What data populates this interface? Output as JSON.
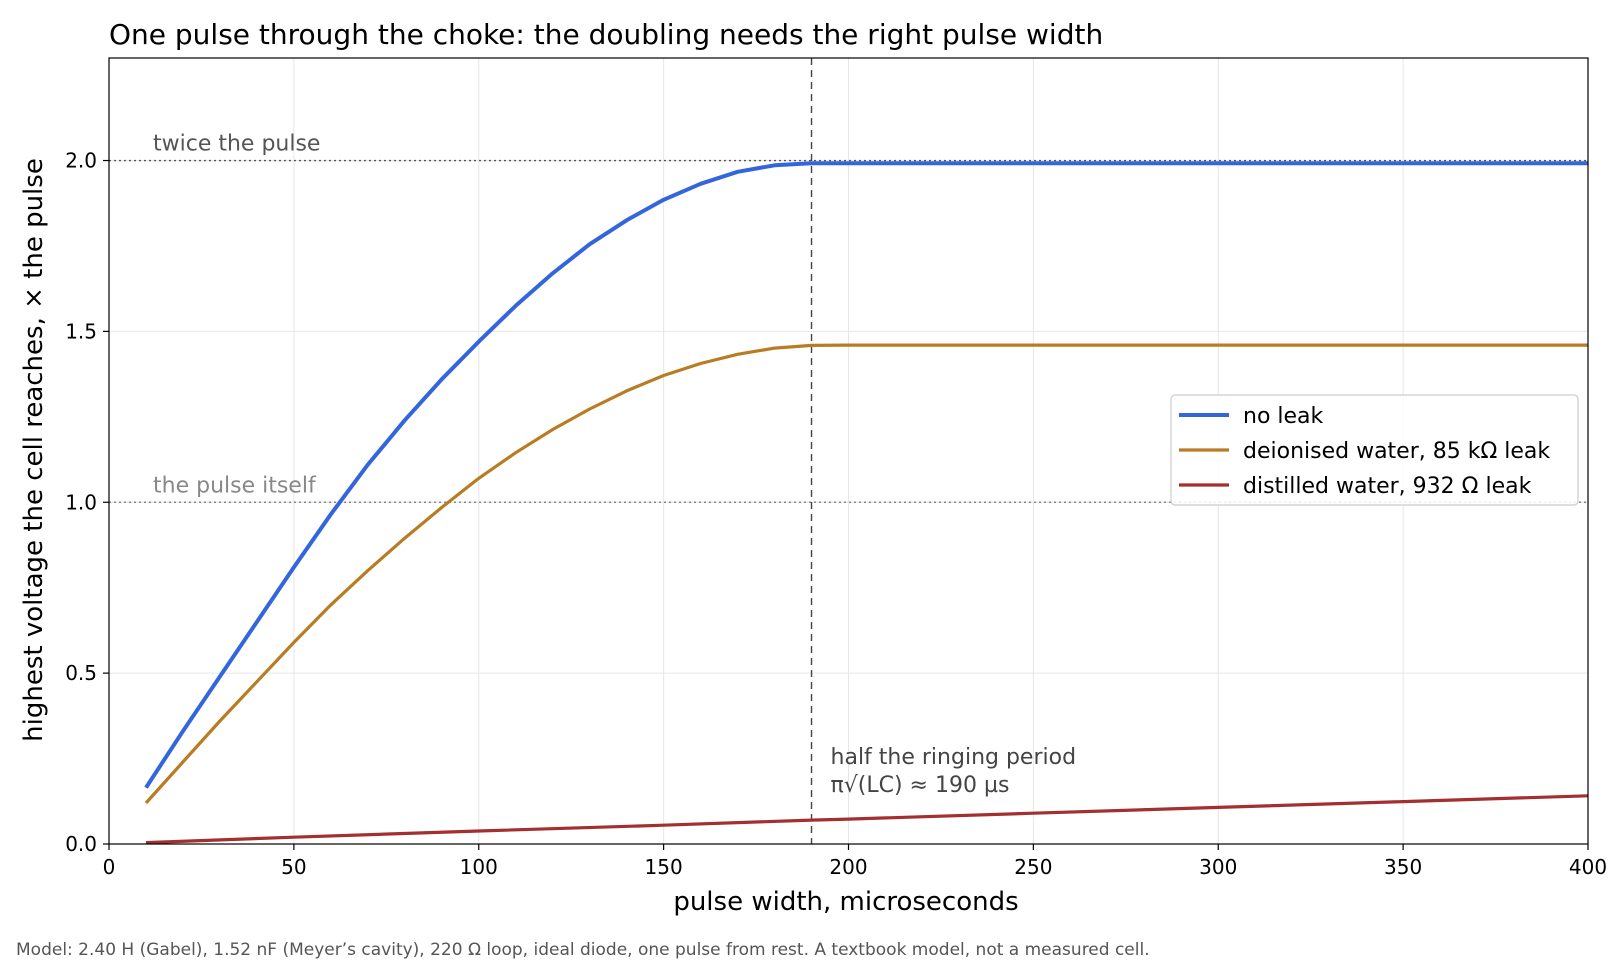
{
  "chart_data": {
    "type": "line",
    "title": "One pulse through the choke: the doubling needs the right pulse width",
    "xlabel": "pulse width, microseconds",
    "ylabel": "highest voltage the cell reaches, × the pulse",
    "xlim": [
      0,
      400
    ],
    "ylim": [
      0,
      2.3
    ],
    "xticks": [
      0,
      50,
      100,
      150,
      200,
      250,
      300,
      350,
      400
    ],
    "yticks": [
      0.0,
      0.5,
      1.0,
      1.5,
      2.0
    ],
    "xtick_labels": [
      "0",
      "50",
      "100",
      "150",
      "200",
      "250",
      "300",
      "350",
      "400"
    ],
    "ytick_labels": [
      "0.0",
      "0.5",
      "1.0",
      "1.5",
      "2.0"
    ],
    "grid": true,
    "legend_position": "right",
    "series": [
      {
        "name": "no leak",
        "color": "#3366dd",
        "x": [
          10,
          20,
          30,
          40,
          50,
          60,
          70,
          80,
          90,
          100,
          110,
          120,
          130,
          140,
          150,
          160,
          170,
          180,
          190,
          200,
          250,
          300,
          350,
          400
        ],
        "values": [
          0.165,
          0.33,
          0.49,
          0.65,
          0.81,
          0.965,
          1.11,
          1.24,
          1.36,
          1.47,
          1.575,
          1.67,
          1.755,
          1.825,
          1.885,
          1.932,
          1.967,
          1.986,
          1.992,
          1.992,
          1.992,
          1.992,
          1.992,
          1.992
        ]
      },
      {
        "name": "deionised water, 85 kΩ leak",
        "color": "#b87c23",
        "x": [
          10,
          20,
          30,
          40,
          50,
          60,
          70,
          80,
          90,
          100,
          110,
          120,
          130,
          140,
          150,
          160,
          170,
          180,
          190,
          200,
          250,
          300,
          350,
          400
        ],
        "values": [
          0.12,
          0.24,
          0.36,
          0.475,
          0.59,
          0.7,
          0.8,
          0.895,
          0.985,
          1.07,
          1.145,
          1.213,
          1.273,
          1.326,
          1.371,
          1.406,
          1.433,
          1.451,
          1.459,
          1.46,
          1.46,
          1.46,
          1.46,
          1.46
        ]
      },
      {
        "name": "distilled water, 932 Ω leak",
        "color": "#a32f2f",
        "x": [
          10,
          50,
          100,
          150,
          190,
          200,
          250,
          300,
          350,
          400
        ],
        "values": [
          0.004,
          0.02,
          0.038,
          0.055,
          0.07,
          0.073,
          0.09,
          0.107,
          0.124,
          0.141
        ]
      }
    ],
    "reference_lines": [
      {
        "axis": "y",
        "value": 2.0,
        "style": "dotted",
        "color": "#555555",
        "label": "twice the pulse"
      },
      {
        "axis": "y",
        "value": 1.0,
        "style": "dotted",
        "color": "#888888",
        "label": "the pulse itself"
      },
      {
        "axis": "x",
        "value": 190,
        "style": "dashed",
        "color": "#444444",
        "label_lines": [
          "half the ringing period",
          "π√(LC) ≈ 190 µs"
        ]
      }
    ]
  },
  "footnote": "Model: 2.40 H (Gabel), 1.52 nF (Meyer’s cavity), 220 Ω loop, ideal diode, one pulse from rest. A textbook model, not a measured cell."
}
